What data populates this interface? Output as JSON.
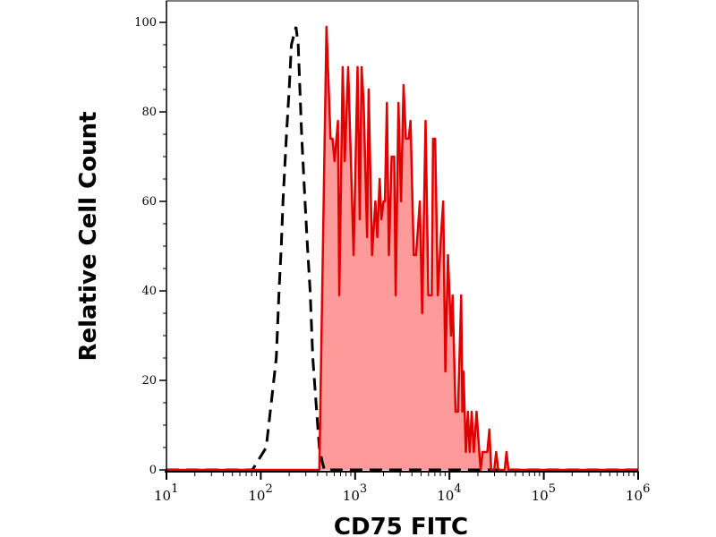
{
  "chart_data": {
    "type": "area",
    "title": "",
    "xlabel": "CD75 FITC",
    "ylabel": "Relative Cell Count",
    "x_scale": "log",
    "xlim": [
      10,
      1000000
    ],
    "ylim": [
      0,
      105
    ],
    "x_ticks": [
      {
        "base": "10",
        "exp": "1",
        "value": 10
      },
      {
        "base": "10",
        "exp": "2",
        "value": 100
      },
      {
        "base": "10",
        "exp": "3",
        "value": 1000
      },
      {
        "base": "10",
        "exp": "4",
        "value": 10000
      },
      {
        "base": "10",
        "exp": "5",
        "value": 100000
      },
      {
        "base": "10",
        "exp": "6",
        "value": 1000000
      }
    ],
    "y_ticks": [
      "0",
      "20",
      "40",
      "60",
      "80",
      "100"
    ],
    "grid": false,
    "legend": "none",
    "series": [
      {
        "style": "dashed-line",
        "color": "#000000",
        "x": [
          10,
          81.5,
          114,
          129,
          146,
          156,
          165,
          172,
          187,
          200,
          211,
          236,
          249,
          260,
          271,
          294,
          312,
          333,
          356,
          394,
          417,
          446,
          472,
          1000000
        ],
        "y": [
          0,
          0,
          5,
          15,
          25,
          40,
          50,
          60,
          75,
          85,
          95,
          99,
          95,
          85,
          75,
          60,
          50,
          40,
          25,
          12,
          5,
          2,
          0,
          0
        ]
      },
      {
        "style": "filled-line",
        "color": "#e00000",
        "fill": "#ff9a9a",
        "x": [
          10,
          417,
          497,
          548,
          575,
          605,
          658,
          679,
          738,
          776,
          843,
          902,
          964,
          1060,
          1120,
          1170,
          1230,
          1340,
          1390,
          1510,
          1640,
          1720,
          1820,
          1900,
          2000,
          2070,
          2170,
          2280,
          2440,
          2600,
          2690,
          2880,
          3070,
          3260,
          3450,
          3690,
          3870,
          4180,
          4430,
          4850,
          5140,
          5580,
          5970,
          6490,
          6700,
          7050,
          7520,
          8110,
          8590,
          9040,
          9640,
          10400,
          10800,
          11600,
          12300,
          13300,
          13700,
          14100,
          14900,
          15700,
          16400,
          17200,
          18100,
          19400,
          20700,
          21400,
          22500,
          25200,
          26500,
          27700,
          29800,
          31300,
          32900,
          38500,
          40200,
          42200,
          1000000
        ],
        "y": [
          0,
          0,
          99,
          74,
          74,
          69,
          78,
          39,
          90,
          69,
          90,
          69,
          48,
          90,
          56,
          90,
          82,
          52,
          85,
          48,
          60,
          52,
          65,
          56,
          60,
          60,
          82,
          48,
          70,
          70,
          39,
          82,
          60,
          86,
          74,
          74,
          78,
          48,
          48,
          60,
          35,
          78,
          39,
          39,
          74,
          74,
          39,
          52,
          60,
          22,
          48,
          30,
          39,
          13,
          13,
          39,
          13,
          22,
          4,
          13,
          4,
          13,
          4,
          13,
          4,
          0,
          4,
          4,
          9,
          0,
          0,
          4,
          0,
          0,
          4,
          0,
          0
        ]
      }
    ]
  }
}
